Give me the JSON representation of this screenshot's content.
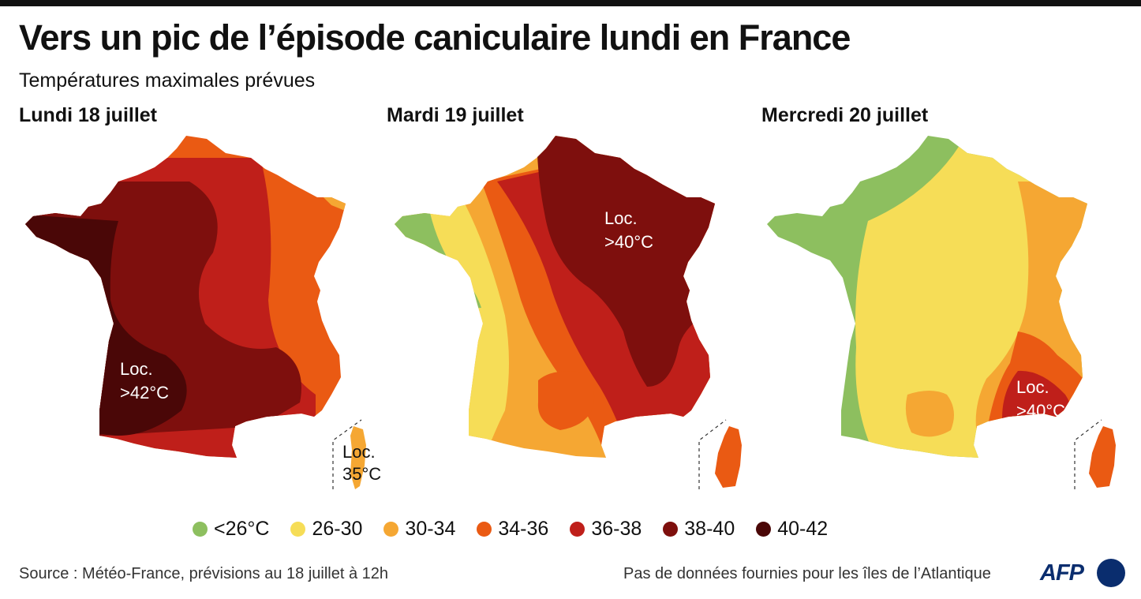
{
  "title": "Vers un pic de l’épisode caniculaire lundi en France",
  "subtitle": "Températures maximales prévues",
  "maps": [
    {
      "day": "Lundi 18 juillet",
      "note_line1": "Loc.",
      "note_line2": ">42°C",
      "corsica_line1": "Loc.",
      "corsica_line2": "35°C"
    },
    {
      "day": "Mardi 19 juillet",
      "note_line1": "Loc.",
      "note_line2": ">40°C"
    },
    {
      "day": "Mercredi 20 juillet",
      "note_line1": "Loc.",
      "note_line2": ">40°C"
    }
  ],
  "legend": [
    {
      "label": "<26°C",
      "color": "#8dbf5f"
    },
    {
      "label": "26-30",
      "color": "#f6dd57"
    },
    {
      "label": "30-34",
      "color": "#f5a733"
    },
    {
      "label": "34-36",
      "color": "#ea5a13"
    },
    {
      "label": "36-38",
      "color": "#bf1f1a"
    },
    {
      "label": "38-40",
      "color": "#7e0f0d"
    },
    {
      "label": "40-42",
      "color": "#4a0707"
    }
  ],
  "footer": {
    "source": "Source : Météo-France, prévisions au 18 juillet à 12h",
    "note": "Pas de données fournies pour les îles de l’Atlantique",
    "logo": "AFP"
  }
}
